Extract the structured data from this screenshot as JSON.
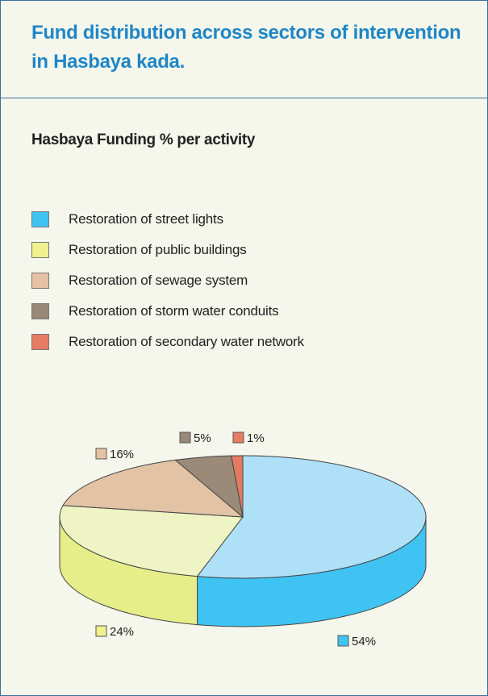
{
  "title": "Fund distribution across sectors of intervention in Hasbaya kada.",
  "chart_data": {
    "type": "pie",
    "title": "Hasbaya Funding % per activity",
    "legend_position": "top",
    "series": [
      {
        "name": "Restoration of street lights",
        "value": 54,
        "label": "54%",
        "color": "#aee0f8",
        "side_color": "#3fc3f3",
        "swatch": "#3fc3f3"
      },
      {
        "name": "Restoration of public buildings",
        "value": 24,
        "label": "24%",
        "color": "#eef4c4",
        "side_color": "#e6ee8a",
        "swatch": "#eef18e"
      },
      {
        "name": "Restoration of sewage system",
        "value": 16,
        "label": "16%",
        "color": "#e3c3a6",
        "side_color": "#e3c3a6",
        "swatch": "#e6c2a4"
      },
      {
        "name": "Restoration of storm water conduits",
        "value": 5,
        "label": "5%",
        "color": "#9b8a78",
        "side_color": "#9b8a78",
        "swatch": "#998877"
      },
      {
        "name": "Restoration of secondary water network",
        "value": 1,
        "label": "1%",
        "color": "#e37a62",
        "side_color": "#e37a62",
        "swatch": "#e67c64"
      }
    ]
  }
}
